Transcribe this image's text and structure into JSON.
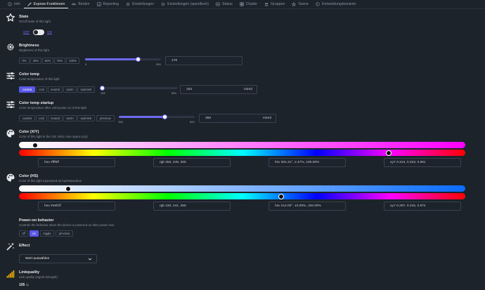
{
  "tabs": [
    {
      "label": "Info",
      "icon": "info-icon",
      "active": false
    },
    {
      "label": "Expose-Funktionen",
      "icon": "wand-icon",
      "active": true
    },
    {
      "label": "Binden",
      "icon": "link-icon",
      "active": false
    },
    {
      "label": "Reporting",
      "icon": "report-icon",
      "active": false
    },
    {
      "label": "Einstellungen",
      "icon": "gear-icon",
      "active": false
    },
    {
      "label": "Einstellungen (spezifisch)",
      "icon": "gear-icon",
      "active": false
    },
    {
      "label": "Status",
      "icon": "status-icon",
      "active": false
    },
    {
      "label": "Cluster",
      "icon": "cluster-icon",
      "active": false
    },
    {
      "label": "Gruppen",
      "icon": "groups-icon",
      "active": false
    },
    {
      "label": "Szene",
      "icon": "scene-icon",
      "active": false
    },
    {
      "label": "Entwicklungskonsole",
      "icon": "console-icon",
      "active": false
    }
  ],
  "state": {
    "title": "State",
    "desc": "On/off state of this light",
    "off_label": "OFF",
    "on_label": "ON"
  },
  "brightness": {
    "title": "Brightness",
    "desc": "Brightness of this light",
    "presets": [
      "0%",
      "25%",
      "50%",
      "75%",
      "100%"
    ],
    "min": "0",
    "max": "254",
    "value": "178",
    "fraction": 0.7
  },
  "color_temp": {
    "title": "Color temp",
    "desc": "Color temperature of this light",
    "presets": [
      "coolest",
      "cool",
      "neutral",
      "warm",
      "warmest"
    ],
    "active_preset": 0,
    "min": "153",
    "max": "500",
    "value": "153",
    "unit": "mired",
    "fraction": 0.0
  },
  "color_temp_startup": {
    "title": "Color temp startup",
    "desc": "Color temperature after cold power on of this light",
    "presets": [
      "coolest",
      "cool",
      "neutral",
      "warm",
      "warmest",
      "previous"
    ],
    "min": "153",
    "max": "500",
    "value": "366",
    "unit": "mired",
    "fraction": 0.61
  },
  "color_xy": {
    "title": "Color (X/Y)",
    "desc": "Color of this light in the CIE 1931 color space (x/y)",
    "hex": "hex  #fff9ff",
    "rgb": "rgb  255, 249, 255",
    "hsv": "hsv  301.31°, 2.47%, 100.00%",
    "xyy": "xyY  0.313, 0.323, 0.961",
    "saturation_fraction": 0.025,
    "hue_fraction": 0.837
  },
  "color_hs": {
    "title": "Color (HS)",
    "desc": "Color of this light expressed as hue/saturation",
    "hex": "hex  #e6f1ff",
    "rgb": "rgb  230, 241, 255",
    "hsv": "hsv  212.00°, 10.00%, 100.00%",
    "xyy": "xyY  0.297, 0.315, 0.872",
    "saturation_fraction": 0.1,
    "hue_fraction": 0.589
  },
  "power_on": {
    "title": "Power-on behavior",
    "desc": "Controls the behavior when the device is powered on after power loss",
    "options": [
      "off",
      "on",
      "toggle",
      "previous"
    ],
    "active_option": 1
  },
  "effect": {
    "title": "Effect",
    "placeholder": "Wert auswählen"
  },
  "linkquality": {
    "title": "Linkquality",
    "desc": "Link quality (signal strength)",
    "value": "105",
    "unit": "lqi"
  },
  "colors": {
    "accent": "#5a58e8",
    "background": "#1d232a"
  }
}
